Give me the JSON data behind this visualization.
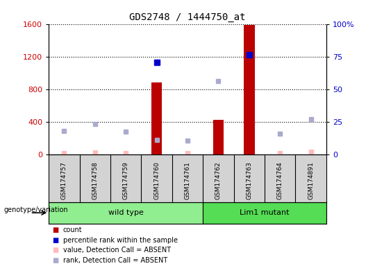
{
  "title": "GDS2748 / 1444750_at",
  "samples": [
    "GSM174757",
    "GSM174758",
    "GSM174759",
    "GSM174760",
    "GSM174761",
    "GSM174762",
    "GSM174763",
    "GSM174764",
    "GSM174891"
  ],
  "groups": [
    {
      "name": "wild type",
      "indices": [
        0,
        1,
        2,
        3,
        4
      ],
      "color": "#90ee90"
    },
    {
      "name": "Lim1 mutant",
      "indices": [
        5,
        6,
        7,
        8
      ],
      "color": "#55dd55"
    }
  ],
  "bar_values": [
    null,
    null,
    null,
    880,
    null,
    420,
    1590,
    null,
    null
  ],
  "bar_color": "#bb0000",
  "rank_present_values": [
    null,
    null,
    null,
    1130,
    null,
    null,
    1220,
    null,
    null
  ],
  "rank_present_color": "#0000cc",
  "value_absent_values": [
    18,
    22,
    18,
    null,
    18,
    null,
    null,
    18,
    28
  ],
  "value_absent_color": "#ffbbbb",
  "rank_absent_values": [
    290,
    370,
    275,
    175,
    165,
    900,
    null,
    250,
    435
  ],
  "rank_absent_color": "#aaaacc",
  "ylim_left": [
    0,
    1600
  ],
  "ylim_right": [
    0,
    100
  ],
  "yticks_left": [
    0,
    400,
    800,
    1200,
    1600
  ],
  "yticks_right": [
    0,
    25,
    50,
    75,
    100
  ],
  "ytick_labels_right": [
    "0",
    "25",
    "50",
    "75",
    "100%"
  ],
  "ylabel_left_color": "#cc0000",
  "ylabel_right_color": "#0000cc",
  "grid_color": "black",
  "cell_bg": "#d3d3d3",
  "group_bg": "white",
  "plot_bg": "white",
  "legend_items": [
    {
      "color": "#bb0000",
      "label": "count"
    },
    {
      "color": "#0000cc",
      "label": "percentile rank within the sample"
    },
    {
      "color": "#ffbbbb",
      "label": "value, Detection Call = ABSENT"
    },
    {
      "color": "#aaaacc",
      "label": "rank, Detection Call = ABSENT"
    }
  ]
}
